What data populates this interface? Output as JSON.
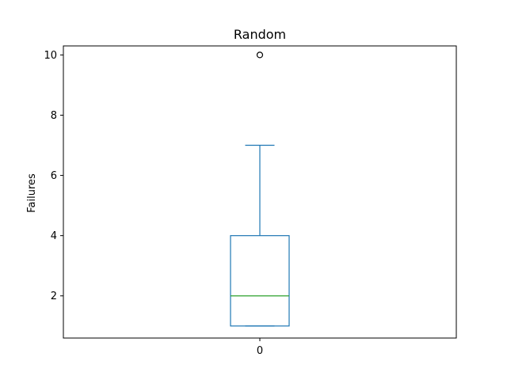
{
  "chart_data": {
    "type": "box",
    "title": "Random",
    "xlabel": "",
    "ylabel": "Failures",
    "categories": [
      "0"
    ],
    "ylim": [
      0.6,
      10.3
    ],
    "yticks": [
      2,
      4,
      6,
      8,
      10
    ],
    "grid": false,
    "boxes": [
      {
        "category": "0",
        "whisker_low": 1,
        "q1": 1,
        "median": 2,
        "q3": 4,
        "whisker_high": 7,
        "outliers": [
          10
        ]
      }
    ],
    "colors": {
      "box": "#1f77b4",
      "median": "#2ca02c",
      "outlier": "#000000"
    }
  }
}
